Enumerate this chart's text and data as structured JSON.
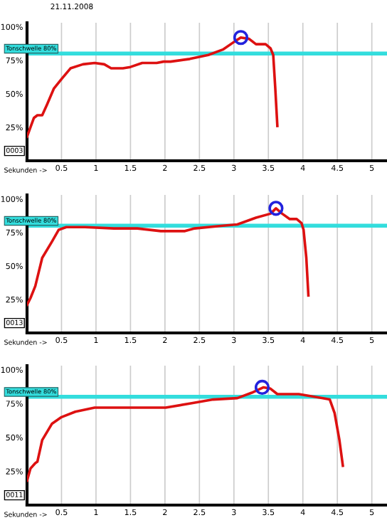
{
  "chart_data": [
    {
      "type": "line",
      "title": "21.11.2008",
      "xlabel": "Sekunden ->",
      "annotations": [
        "0003"
      ],
      "xlim": [
        0,
        5.22
      ],
      "ylim": [
        0,
        103
      ],
      "xticks": [
        0.5,
        1,
        1.5,
        2,
        2.5,
        3,
        3.5,
        4,
        4.5,
        5
      ],
      "yticks": [
        {
          "value": 25,
          "label": "25%"
        },
        {
          "value": 50,
          "label": "50%"
        },
        {
          "value": 75,
          "label": "75%"
        },
        {
          "value": 100,
          "label": "100%"
        }
      ],
      "grid": "x",
      "line_style": "solid",
      "marker": "none",
      "ref_lines": [
        {
          "axis": "y",
          "value": 80,
          "label": "Tonschwelle 80%",
          "color": "#33dddd"
        }
      ],
      "series": [
        {
          "color": "#dd1111",
          "x": [
            0,
            0.05,
            0.1,
            0.15,
            0.22,
            0.29,
            0.39,
            0.5,
            0.63,
            0.81,
            0.98,
            1.12,
            1.22,
            1.39,
            1.5,
            1.67,
            1.88,
            1.98,
            2.08,
            2.36,
            2.63,
            2.84,
            3.01,
            3.1,
            3.22,
            3.32,
            3.46,
            3.53,
            3.57,
            3.6,
            3.63
          ],
          "values": [
            18,
            25,
            32,
            34,
            34,
            42,
            54,
            61,
            69,
            72,
            73,
            72,
            69,
            69,
            70,
            73,
            73,
            74,
            74,
            76,
            79,
            83,
            89,
            92,
            91,
            87,
            87,
            84,
            79,
            54,
            26
          ]
        },
        {
          "type": "scatter",
          "marker": "circle",
          "color": "#2222dd",
          "x": [
            3.1
          ],
          "values": [
            92
          ]
        }
      ]
    },
    {
      "type": "line",
      "xlabel": "Sekunden ->",
      "annotations": [
        "0013"
      ],
      "xlim": [
        0,
        5.22
      ],
      "ylim": [
        0,
        103
      ],
      "xticks": [
        0.5,
        1,
        1.5,
        2,
        2.5,
        3,
        3.5,
        4,
        4.5,
        5
      ],
      "yticks": [
        {
          "value": 25,
          "label": "25%"
        },
        {
          "value": 50,
          "label": "50%"
        },
        {
          "value": 75,
          "label": "75%"
        },
        {
          "value": 100,
          "label": "100%"
        }
      ],
      "grid": "x",
      "line_style": "solid",
      "marker": "none",
      "ref_lines": [
        {
          "axis": "y",
          "value": 80,
          "label": "Tonschwelle 80%",
          "color": "#33dddd"
        }
      ],
      "series": [
        {
          "color": "#dd1111",
          "x": [
            0,
            0.05,
            0.12,
            0.22,
            0.36,
            0.46,
            0.57,
            0.84,
            1.26,
            1.6,
            1.94,
            2.29,
            2.43,
            2.84,
            3.05,
            3.32,
            3.53,
            3.61,
            3.7,
            3.81,
            3.91,
            3.98,
            4.01,
            4.05,
            4.08
          ],
          "values": [
            21,
            26,
            35,
            56,
            68,
            77,
            79,
            79,
            78,
            78,
            76,
            76,
            78,
            80,
            81,
            86,
            89,
            93,
            89,
            85,
            85,
            82,
            77,
            56,
            28
          ]
        },
        {
          "type": "scatter",
          "marker": "circle",
          "color": "#2222dd",
          "x": [
            3.61
          ],
          "values": [
            93
          ]
        }
      ]
    },
    {
      "type": "line",
      "xlabel": "Sekunden ->",
      "annotations": [
        "0011"
      ],
      "xlim": [
        0,
        5.22
      ],
      "ylim": [
        0,
        103
      ],
      "xticks": [
        0.5,
        1,
        1.5,
        2,
        2.5,
        3,
        3.5,
        4,
        4.5,
        5
      ],
      "yticks": [
        {
          "value": 25,
          "label": "25%"
        },
        {
          "value": 50,
          "label": "50%"
        },
        {
          "value": 75,
          "label": "75%"
        },
        {
          "value": 100,
          "label": "100%"
        }
      ],
      "grid": "x",
      "line_style": "solid",
      "marker": "none",
      "ref_lines": [
        {
          "axis": "y",
          "value": 80,
          "label": "Tonschwelle 80%",
          "color": "#33dddd"
        }
      ],
      "series": [
        {
          "color": "#dd1111",
          "x": [
            0,
            0.05,
            0.12,
            0.15,
            0.22,
            0.36,
            0.5,
            0.7,
            0.98,
            1.46,
            2.01,
            2.36,
            2.7,
            3.05,
            3.26,
            3.43,
            3.53,
            3.63,
            3.94,
            4.29,
            4.39,
            4.46,
            4.53,
            4.58
          ],
          "values": [
            18,
            27,
            31,
            32,
            48,
            60,
            65,
            69,
            72,
            72,
            72,
            75,
            78,
            79,
            83,
            87,
            86,
            82,
            82,
            79,
            78,
            68,
            48,
            29
          ]
        },
        {
          "type": "scatter",
          "marker": "circle",
          "color": "#2222dd",
          "x": [
            3.41
          ],
          "values": [
            87
          ]
        }
      ]
    }
  ]
}
